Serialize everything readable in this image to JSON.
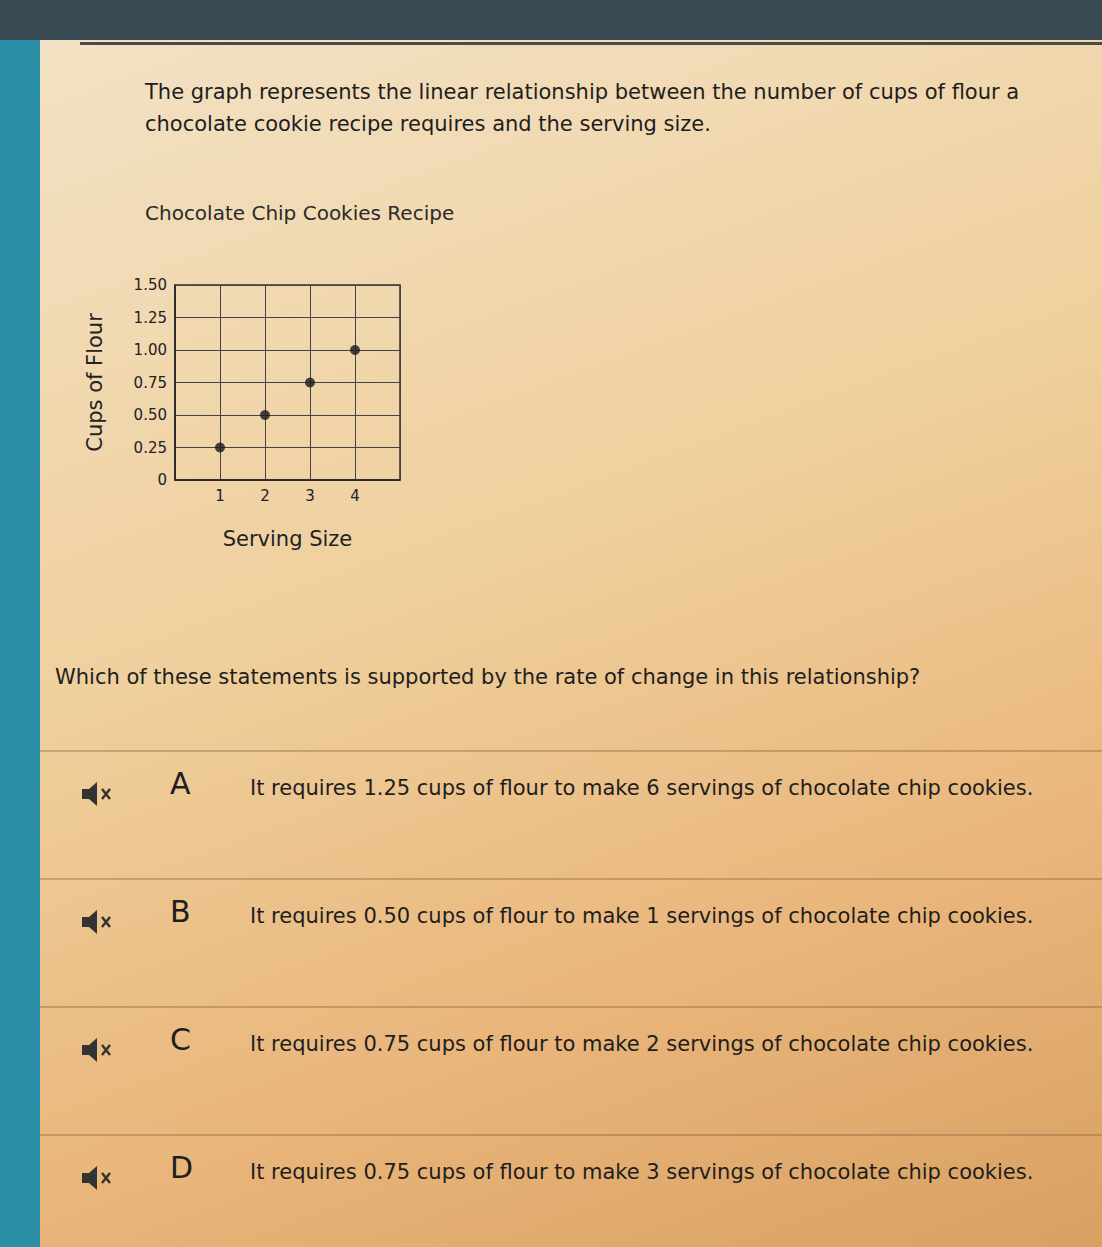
{
  "question": {
    "prompt": "The graph represents the linear relationship between the number of cups of flour a chocolate cookie recipe requires and the serving size.",
    "question": "Which of these statements is supported by the rate of change in this relationship?",
    "options": [
      {
        "letter": "A",
        "text": "It requires 1.25 cups of flour to make 6 servings of chocolate chip cookies."
      },
      {
        "letter": "B",
        "text": "It requires 0.50 cups of flour to make 1 servings of chocolate chip cookies."
      },
      {
        "letter": "C",
        "text": "It requires 0.75 cups of flour to make 2 servings of chocolate chip cookies."
      },
      {
        "letter": "D",
        "text": "It requires 0.75 cups of flour to make 3 servings of chocolate chip cookies."
      }
    ]
  },
  "chart_data": {
    "type": "scatter",
    "title": "Chocolate Chip Cookies Recipe",
    "x_label": "Serving Size",
    "y_label": "Cups of Flour",
    "x": [
      1,
      2,
      3,
      4
    ],
    "values": [
      0.25,
      0.5,
      0.75,
      1.0
    ],
    "color": "#1a1a1a",
    "marker": "circle",
    "xlim": [
      0,
      5
    ],
    "xticks": [
      1,
      2,
      3,
      4
    ],
    "ylim": [
      0,
      1.5
    ],
    "yticks": [
      0,
      0.25,
      {
        "value": 0.5,
        "label": "0.50"
      },
      0.75,
      {
        "value": 1.0,
        "label": "1.00"
      },
      1.25,
      {
        "value": 1.5,
        "label": "1.50"
      }
    ],
    "grid": true
  }
}
